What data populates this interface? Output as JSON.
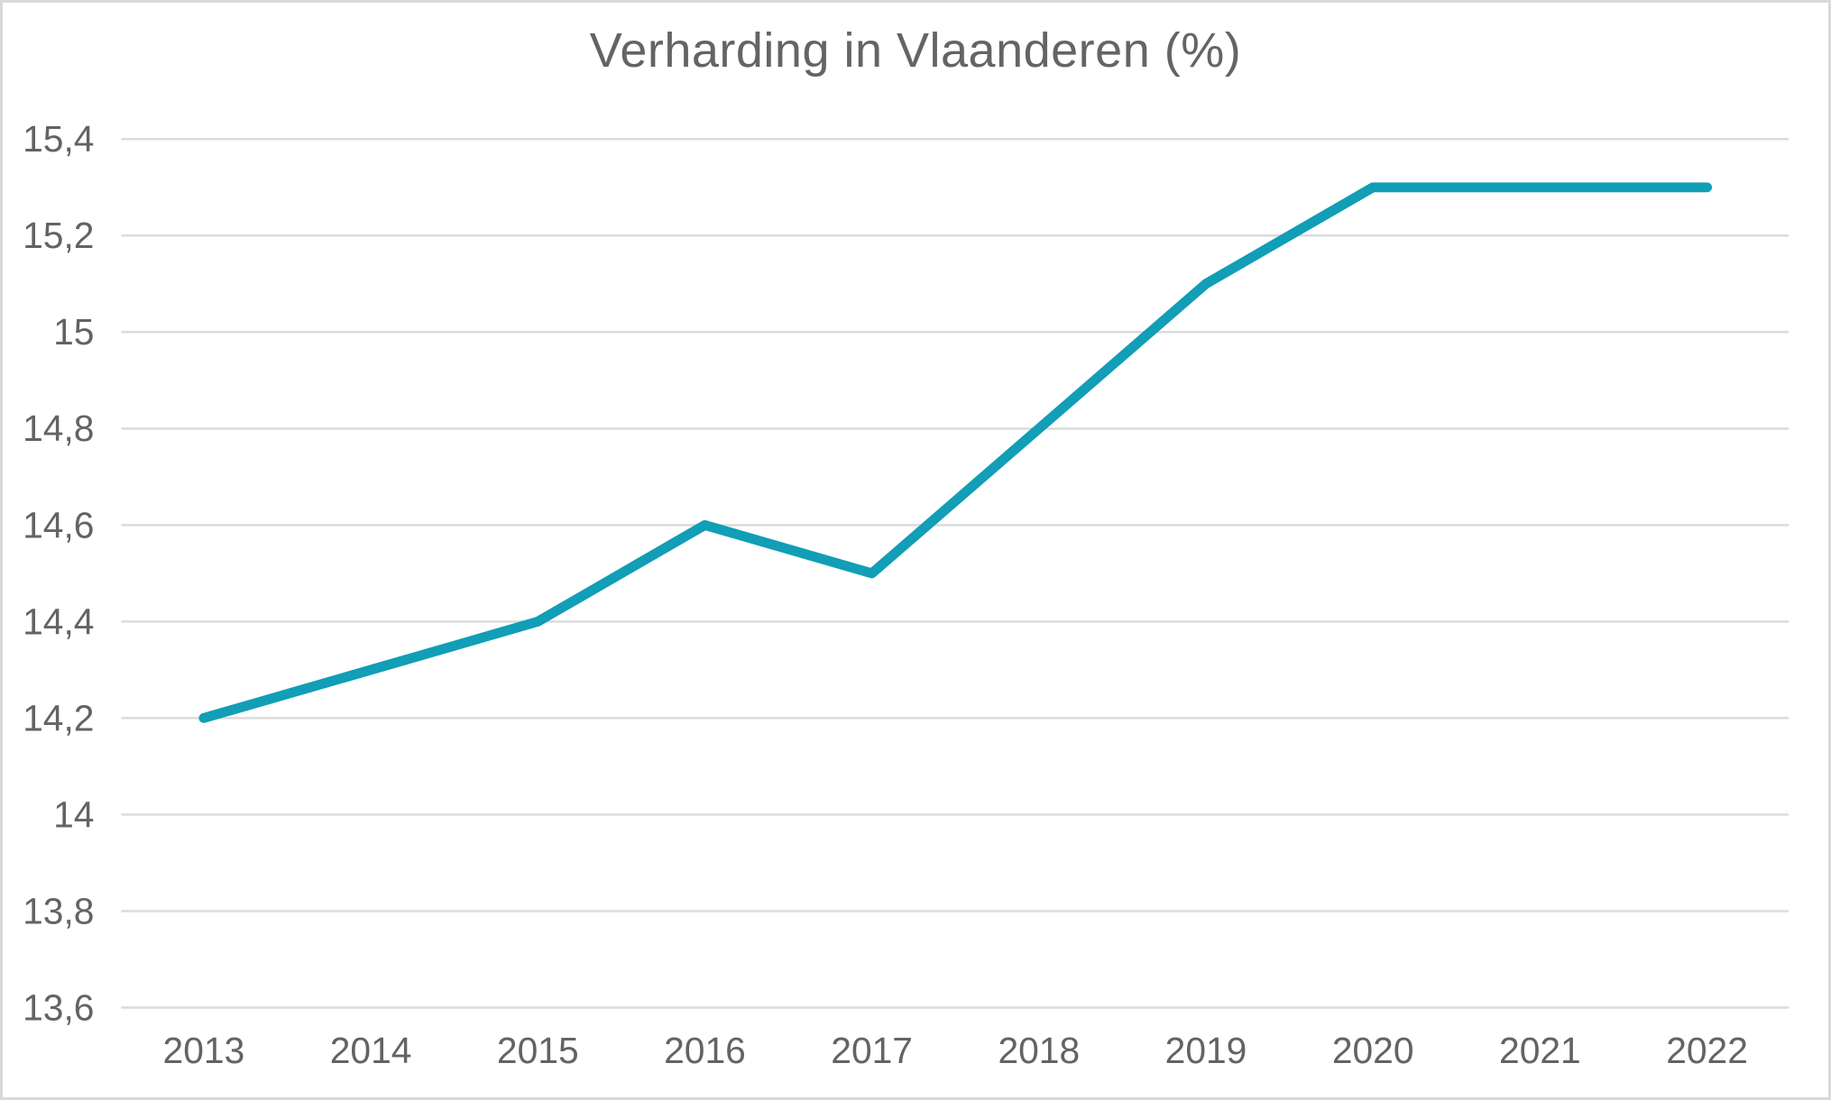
{
  "chart_data": {
    "type": "line",
    "title": "Verharding in Vlaanderen (%)",
    "categories": [
      "2013",
      "2014",
      "2015",
      "2016",
      "2017",
      "2018",
      "2019",
      "2020",
      "2021",
      "2022"
    ],
    "series": [
      {
        "name": "Verharding",
        "values": [
          14.2,
          14.3,
          14.4,
          14.6,
          14.5,
          14.8,
          15.1,
          15.3,
          15.3,
          15.3
        ]
      }
    ],
    "xlabel": "",
    "ylabel": "",
    "ylim": [
      13.6,
      15.4
    ],
    "y_tick_step": 0.2,
    "y_axis": [
      {
        "value": 15.4,
        "label": "15,4"
      },
      {
        "value": 15.2,
        "label": "15,2"
      },
      {
        "value": 15.0,
        "label": "15"
      },
      {
        "value": 14.8,
        "label": "14,8"
      },
      {
        "value": 14.6,
        "label": "14,6"
      },
      {
        "value": 14.4,
        "label": "14,4"
      },
      {
        "value": 14.2,
        "label": "14,2"
      },
      {
        "value": 14.0,
        "label": "14"
      },
      {
        "value": 13.8,
        "label": "13,8"
      },
      {
        "value": 13.6,
        "label": "13,6"
      }
    ],
    "grid": true,
    "legend_position": "none",
    "colors": {
      "line": "#119EB6",
      "grid": "#DBDBDB",
      "text": "#636363"
    }
  }
}
